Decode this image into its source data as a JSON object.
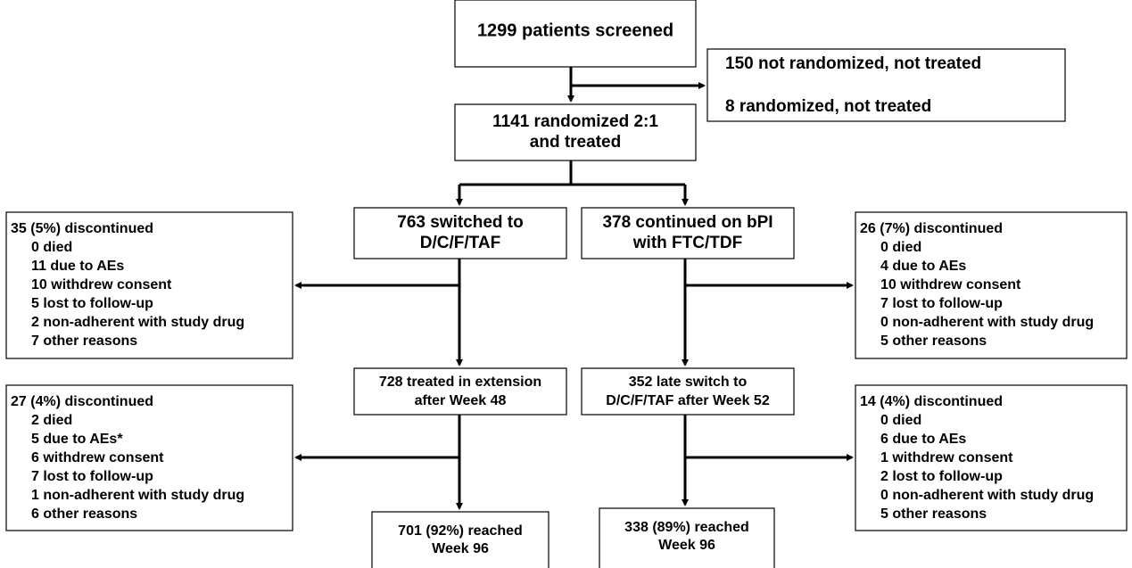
{
  "nodes": [
    {
      "lines": [
        "1299 patients screened"
      ]
    },
    {
      "lines": [
        "150 not randomized, not treated",
        "8 randomized, not treated"
      ]
    },
    {
      "lines": [
        "1141 randomized 2:1",
        "and treated"
      ]
    },
    {
      "lines": [
        "763 switched to",
        "D/C/F/TAF"
      ]
    },
    {
      "lines": [
        "378 continued on bPI",
        "with FTC/TDF"
      ]
    },
    {
      "lines": [
        "35 (5%) discontinued",
        "0 died",
        "11 due to AEs",
        "10 withdrew consent",
        "5 lost to follow-up",
        "2 non-adherent with study drug",
        "7 other reasons"
      ]
    },
    {
      "lines": [
        "26 (7%) discontinued",
        "0 died",
        "4 due to AEs",
        "10 withdrew consent",
        "7 lost to follow-up",
        "0 non-adherent with study drug",
        "5 other reasons"
      ]
    },
    {
      "lines": [
        "728 treated in extension",
        "after Week 48"
      ]
    },
    {
      "lines": [
        "352 late switch to",
        "D/C/F/TAF after Week 52"
      ]
    },
    {
      "lines": [
        "27 (4%) discontinued",
        "2 died",
        "5 due to AEs*",
        "6 withdrew consent",
        "7 lost to follow-up",
        "1 non-adherent with study drug",
        "6 other reasons"
      ]
    },
    {
      "lines": [
        "14 (4%) discontinued",
        "0 died",
        "6 due to AEs",
        "1 withdrew consent",
        "2 lost to follow-up",
        "0 non-adherent with study drug",
        "5 other reasons"
      ]
    },
    {
      "lines": [
        "701 (92%) reached",
        "Week 96"
      ]
    },
    {
      "lines": [
        "338 (89%) reached",
        "Week 96"
      ]
    }
  ]
}
